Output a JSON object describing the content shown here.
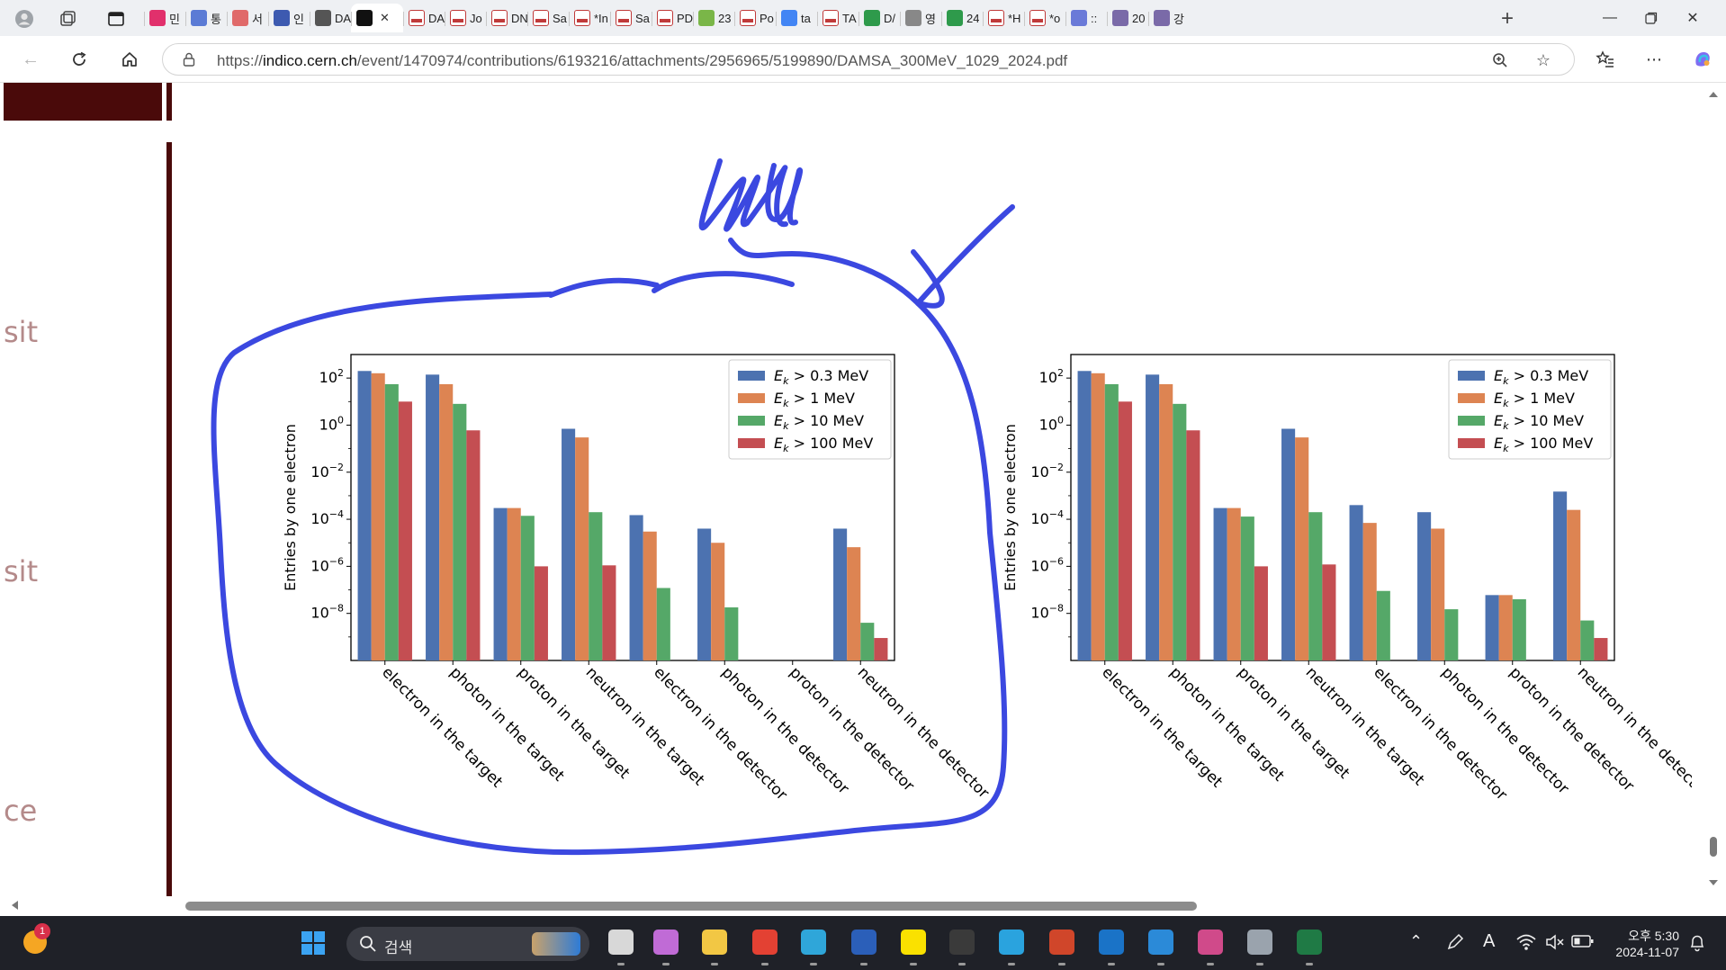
{
  "browser": {
    "tabs": [
      {
        "label": "민",
        "icon": "instagram-icon",
        "color": "#e1306c"
      },
      {
        "label": "통",
        "icon": "doc-icon",
        "color": "#5b7bd5"
      },
      {
        "label": "서",
        "icon": "circle-icon",
        "color": "#e06a6a"
      },
      {
        "label": "인",
        "icon": "bookmark-icon",
        "color": "#3d5ab0"
      },
      {
        "label": "DA",
        "icon": "spiral-icon",
        "color": "#555555"
      },
      {
        "label": "",
        "icon": "spiral-icon",
        "color": "#111111",
        "active": true
      },
      {
        "label": "DA",
        "icon": "pdf-icon",
        "color": "#c03a3a"
      },
      {
        "label": "Jo",
        "icon": "pdf-icon",
        "color": "#c03a3a"
      },
      {
        "label": "DN",
        "icon": "pdf-icon",
        "color": "#c03a3a"
      },
      {
        "label": "Sa",
        "icon": "pdf-icon",
        "color": "#c03a3a"
      },
      {
        "label": "*In",
        "icon": "pdf-icon",
        "color": "#c03a3a"
      },
      {
        "label": "Sa",
        "icon": "pdf-icon",
        "color": "#c03a3a"
      },
      {
        "label": "PD",
        "icon": "pdf-icon",
        "color": "#c03a3a"
      },
      {
        "label": "23",
        "icon": "smiley-icon",
        "color": "#7ab648"
      },
      {
        "label": "Po",
        "icon": "pdf-icon",
        "color": "#c03a3a"
      },
      {
        "label": "ta",
        "icon": "google-icon",
        "color": "#4285f4"
      },
      {
        "label": "TA",
        "icon": "pdf-icon",
        "color": "#c03a3a"
      },
      {
        "label": "D/",
        "icon": "plus-square-icon",
        "color": "#2e9a4b"
      },
      {
        "label": "영",
        "icon": "page-icon",
        "color": "#888888"
      },
      {
        "label": "24",
        "icon": "plus-square-icon",
        "color": "#2e9a4b"
      },
      {
        "label": "*H",
        "icon": "pdf-icon",
        "color": "#c03a3a"
      },
      {
        "label": "*o",
        "icon": "pdf-icon",
        "color": "#c03a3a"
      },
      {
        "label": "::",
        "icon": "swirl-icon",
        "color": "#6a7ad8"
      },
      {
        "label": "20",
        "icon": "cat-icon",
        "color": "#7a6aa8"
      },
      {
        "label": "강",
        "icon": "cat-icon",
        "color": "#7a6aa8"
      }
    ],
    "url_prefix": "https://",
    "url_host": "indico.cern.ch",
    "url_path": "/event/1470974/contributions/6193216/attachments/2956965/5199890/DAMSA_300MeV_1029_2024.pdf",
    "accent": "#4a0a0a"
  },
  "sidebar_fragments": [
    "sit",
    "sit",
    "ce"
  ],
  "annotation": {
    "color": "#3b48e0"
  },
  "chart_data": [
    {
      "type": "bar",
      "ylabel": "Entries by one electron",
      "yscale": "log",
      "ylim": [
        1e-10,
        1000
      ],
      "yticks": [
        "10^2",
        "10^0",
        "10^-2",
        "10^-4",
        "10^-6",
        "10^-8"
      ],
      "legend_position": "top-right",
      "categories": [
        "electron in the target",
        "photon in the target",
        "proton in the target",
        "neutron in the target",
        "electron in the detector",
        "photon in the detector",
        "proton in the detector",
        "neutron in the detector"
      ],
      "series": [
        {
          "name": "E_k > 0.3 MeV",
          "color": "#4c72b0",
          "values": [
            200,
            140,
            0.0003,
            0.7,
            0.00015,
            4e-05,
            null,
            4e-05
          ]
        },
        {
          "name": "E_k > 1 MeV",
          "color": "#dd8452",
          "values": [
            160,
            55,
            0.0003,
            0.3,
            3e-05,
            1e-05,
            null,
            6.5e-06
          ]
        },
        {
          "name": "E_k > 10 MeV",
          "color": "#55a868",
          "values": [
            55,
            8,
            0.00014,
            0.0002,
            1.2e-07,
            1.8e-08,
            null,
            4e-09
          ]
        },
        {
          "name": "E_k > 100 MeV",
          "color": "#c44e52",
          "values": [
            10,
            0.6,
            1e-06,
            1.1e-06,
            null,
            null,
            null,
            9e-10
          ]
        }
      ]
    },
    {
      "type": "bar",
      "ylabel": "Entries by one electron",
      "yscale": "log",
      "ylim": [
        1e-10,
        1000
      ],
      "yticks": [
        "10^2",
        "10^0",
        "10^-2",
        "10^-4",
        "10^-6",
        "10^-8"
      ],
      "legend_position": "top-right",
      "categories": [
        "electron in the target",
        "photon in the target",
        "proton in the target",
        "neutron in the target",
        "electron in the detector",
        "photon in the detector",
        "proton in the detector",
        "neutron in the detector"
      ],
      "series": [
        {
          "name": "E_k > 0.3 MeV",
          "color": "#4c72b0",
          "values": [
            200,
            140,
            0.0003,
            0.7,
            0.0004,
            0.0002,
            6e-08,
            0.0015
          ]
        },
        {
          "name": "E_k > 1 MeV",
          "color": "#dd8452",
          "values": [
            160,
            55,
            0.0003,
            0.3,
            7e-05,
            4e-05,
            6e-08,
            0.00025
          ]
        },
        {
          "name": "E_k > 10 MeV",
          "color": "#55a868",
          "values": [
            55,
            8,
            0.00013,
            0.0002,
            9e-08,
            1.5e-08,
            4e-08,
            5e-09
          ]
        },
        {
          "name": "E_k > 100 MeV",
          "color": "#c44e52",
          "values": [
            10,
            0.6,
            1e-06,
            1.2e-06,
            null,
            null,
            null,
            9e-10
          ]
        }
      ]
    }
  ],
  "taskbar": {
    "search_label": "검색",
    "time": "오후 5:30",
    "date": "2024-11-07",
    "notification_count": "1",
    "apps": [
      {
        "name": "file-manager-icon",
        "color": "#d8d8d8",
        "x": 676
      },
      {
        "name": "copilot-icon",
        "color": "#c06bd6",
        "x": 726
      },
      {
        "name": "folder-icon",
        "color": "#f2c744",
        "x": 780
      },
      {
        "name": "chrome-icon",
        "color": "#e34133",
        "x": 836
      },
      {
        "name": "edge-icon",
        "color": "#2fa6d9",
        "x": 890
      },
      {
        "name": "word-icon",
        "color": "#2b5fb9",
        "x": 946
      },
      {
        "name": "kakaotalk-icon",
        "color": "#fae100",
        "x": 1001
      },
      {
        "name": "terminal-icon",
        "color": "#3a3a3a",
        "x": 1055
      },
      {
        "name": "telegram-icon",
        "color": "#2aa3de",
        "x": 1110
      },
      {
        "name": "powerpoint-icon",
        "color": "#d0462a",
        "x": 1166
      },
      {
        "name": "outlook-icon",
        "color": "#1a73c7",
        "x": 1221
      },
      {
        "name": "vscode-icon",
        "color": "#2b8ad8",
        "x": 1276
      },
      {
        "name": "snipping-icon",
        "color": "#d04a8a",
        "x": 1331
      },
      {
        "name": "settings-icon",
        "color": "#9aa3ad",
        "x": 1386
      },
      {
        "name": "excel-icon",
        "color": "#1f7a45",
        "x": 1441
      }
    ]
  }
}
